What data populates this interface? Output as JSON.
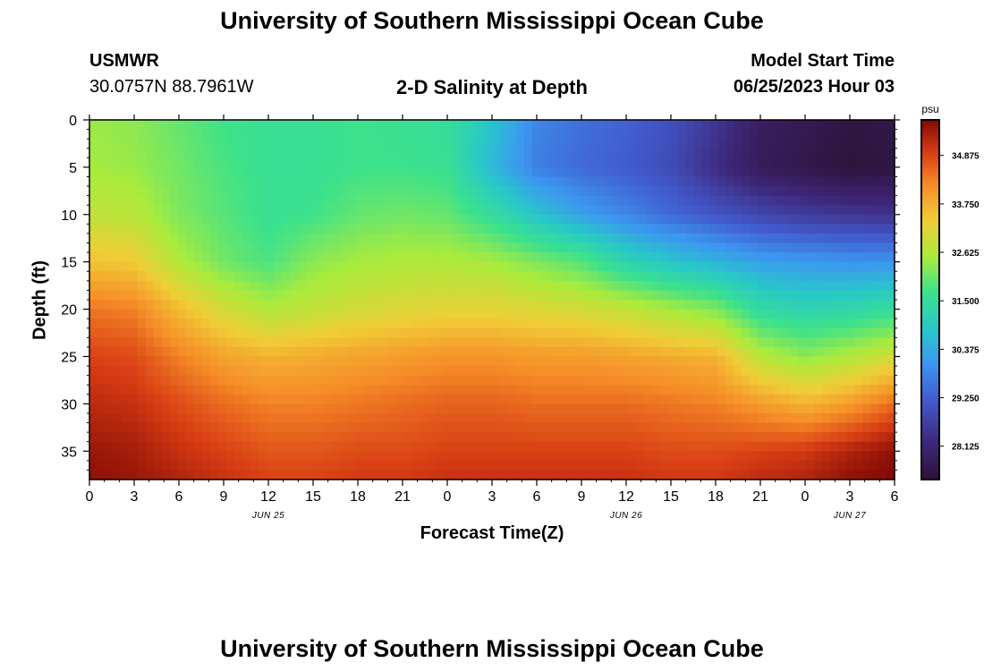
{
  "page_title": "University of Southern Mississippi Ocean Cube",
  "station": {
    "id": "USMWR",
    "coords": "30.0757N  88.7961W"
  },
  "model_start": {
    "label": "Model Start Time",
    "value": "06/25/2023 Hour 03"
  },
  "footer_title": "University of Southern Mississippi Ocean Cube",
  "chart_data": {
    "type": "heatmap",
    "title": "2-D Salinity at Depth",
    "xlabel": "Forecast Time(Z)",
    "ylabel": "Depth (ft)",
    "x_tick_labels": [
      "0",
      "3",
      "6",
      "9",
      "12",
      "15",
      "18",
      "21",
      "0",
      "3",
      "6",
      "9",
      "12",
      "15",
      "18",
      "21",
      "0",
      "3",
      "6"
    ],
    "date_labels": [
      {
        "label": "JUN 25",
        "at_hour": 12
      },
      {
        "label": "JUN 26",
        "at_hour": 36
      },
      {
        "label": "JUN 27",
        "at_hour": 51
      }
    ],
    "x_range_hours": [
      0,
      54
    ],
    "y_ticks": [
      "0",
      "5",
      "10",
      "15",
      "20",
      "25",
      "30",
      "35"
    ],
    "y_range_ft": [
      0,
      38
    ],
    "colorbar": {
      "unit": "psu",
      "tick_labels": [
        "34.875",
        "33.750",
        "32.625",
        "31.500",
        "30.375",
        "29.250",
        "28.125"
      ],
      "range": [
        27.35,
        35.7
      ]
    },
    "salinity_profiles": {
      "depths_ft": [
        0,
        5,
        10,
        15,
        20,
        25,
        30,
        35,
        38
      ],
      "profiles": [
        {
          "hour": 0,
          "values": [
            32.4,
            32.5,
            32.8,
            33.5,
            34.4,
            34.9,
            35.2,
            35.5,
            35.6
          ]
        },
        {
          "hour": 3,
          "values": [
            32.3,
            32.4,
            32.7,
            33.4,
            34.3,
            34.8,
            35.1,
            35.4,
            35.5
          ]
        },
        {
          "hour": 6,
          "values": [
            32.0,
            32.1,
            32.2,
            32.6,
            33.6,
            34.3,
            34.8,
            35.1,
            35.3
          ]
        },
        {
          "hour": 9,
          "values": [
            31.7,
            31.8,
            31.9,
            32.1,
            33.0,
            33.9,
            34.5,
            34.9,
            35.1
          ]
        },
        {
          "hour": 12,
          "values": [
            31.6,
            31.6,
            31.6,
            31.8,
            32.6,
            33.7,
            34.3,
            34.7,
            34.9
          ]
        },
        {
          "hour": 15,
          "values": [
            31.6,
            31.6,
            31.7,
            32.3,
            32.8,
            33.8,
            34.3,
            34.7,
            34.9
          ]
        },
        {
          "hour": 18,
          "values": [
            31.7,
            31.7,
            32.0,
            32.5,
            33.0,
            33.9,
            34.4,
            34.8,
            35.0
          ]
        },
        {
          "hour": 21,
          "values": [
            31.6,
            31.7,
            32.1,
            32.6,
            33.1,
            34.0,
            34.5,
            34.8,
            35.0
          ]
        },
        {
          "hour": 24,
          "values": [
            31.5,
            31.6,
            32.0,
            32.6,
            33.2,
            34.1,
            34.6,
            34.9,
            35.1
          ]
        },
        {
          "hour": 27,
          "values": [
            30.8,
            30.6,
            31.5,
            32.5,
            33.2,
            34.1,
            34.6,
            34.9,
            35.1
          ]
        },
        {
          "hour": 30,
          "values": [
            29.8,
            29.7,
            30.8,
            32.2,
            33.1,
            34.0,
            34.5,
            34.9,
            35.1
          ]
        },
        {
          "hour": 33,
          "values": [
            29.5,
            29.4,
            30.2,
            31.9,
            33.0,
            34.0,
            34.5,
            34.9,
            35.1
          ]
        },
        {
          "hour": 36,
          "values": [
            29.3,
            29.2,
            29.8,
            31.2,
            32.8,
            33.9,
            34.5,
            34.9,
            35.1
          ]
        },
        {
          "hour": 39,
          "values": [
            29.0,
            28.9,
            29.4,
            30.8,
            32.5,
            33.8,
            34.4,
            34.8,
            35.0
          ]
        },
        {
          "hour": 42,
          "values": [
            28.5,
            28.3,
            29.1,
            30.5,
            32.2,
            33.7,
            34.3,
            34.8,
            35.0
          ]
        },
        {
          "hour": 45,
          "values": [
            27.9,
            27.8,
            28.8,
            30.2,
            31.4,
            32.7,
            34.0,
            34.9,
            35.2
          ]
        },
        {
          "hour": 48,
          "values": [
            27.7,
            27.6,
            28.6,
            30.1,
            31.2,
            32.3,
            33.7,
            35.0,
            35.3
          ]
        },
        {
          "hour": 51,
          "values": [
            27.5,
            27.4,
            28.5,
            30.0,
            31.3,
            32.6,
            34.0,
            35.3,
            35.6
          ]
        },
        {
          "hour": 54,
          "values": [
            27.6,
            27.5,
            28.4,
            30.0,
            31.5,
            33.0,
            34.5,
            35.6,
            35.7
          ]
        }
      ]
    }
  }
}
